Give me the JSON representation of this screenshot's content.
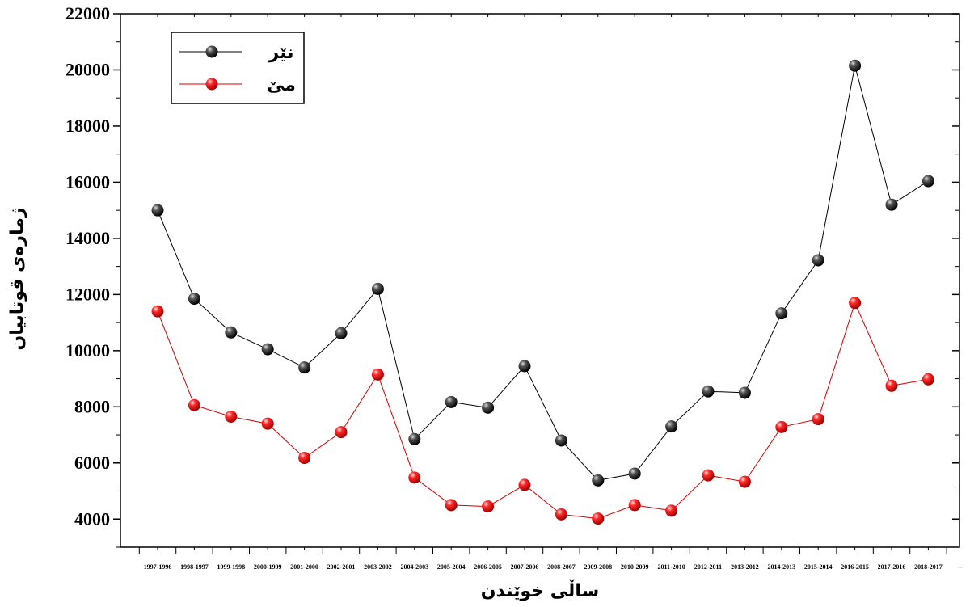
{
  "chart_data": {
    "type": "line",
    "title": "",
    "xlabel": "ساڵی خوێندن",
    "ylabel": "ژمارەی قوتابیان",
    "ylim": [
      3000,
      22000
    ],
    "yticks": [
      4000,
      6000,
      8000,
      10000,
      12000,
      14000,
      16000,
      18000,
      20000,
      22000
    ],
    "grid": false,
    "legend_position": "top-left",
    "categories": [
      "1997-1996",
      "1998-1997",
      "1999-1998",
      "2000-1999",
      "2001-2000",
      "2002-2001",
      "2003-2002",
      "2004-2003",
      "2005-2004",
      "2006-2005",
      "2007-2006",
      "2008-2007",
      "2009-2008",
      "2010-2009",
      "2011-2010",
      "2012-2011",
      "2013-2012",
      "2014-2013",
      "2015-2014",
      "2016-2015",
      "2017-2016",
      "2018-2017"
    ],
    "trailing_tick_label": "--",
    "series": [
      {
        "name": "نێر",
        "color": "#000000",
        "line_color": "#000000",
        "values": [
          15000,
          11850,
          10650,
          10050,
          9400,
          10620,
          12200,
          6850,
          8170,
          7970,
          9450,
          6800,
          5380,
          5620,
          7300,
          8550,
          8500,
          11330,
          13220,
          20150,
          15200,
          16040
        ]
      },
      {
        "name": "مێ",
        "color": "#ff0000",
        "line_color": "#d40000",
        "values": [
          11400,
          8060,
          7650,
          7400,
          6180,
          7100,
          9150,
          5480,
          4500,
          4450,
          5220,
          4170,
          4020,
          4500,
          4300,
          5560,
          5330,
          7280,
          7560,
          11700,
          8750,
          8980
        ]
      }
    ]
  }
}
